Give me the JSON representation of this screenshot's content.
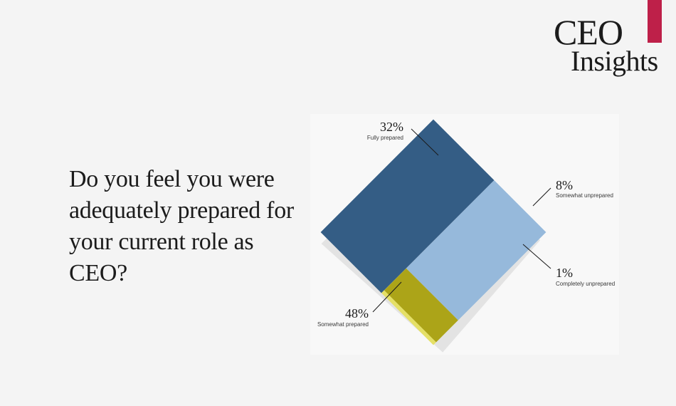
{
  "brand": {
    "line1": "CEO",
    "line2": "Insights",
    "accent_color": "#be2049"
  },
  "question": "Do you feel you were adequately prepared for your current role as CEO?",
  "chart_data": {
    "type": "pie",
    "title": "Do you feel you were adequately prepared for your current role as CEO?",
    "categories": [
      "Fully prepared",
      "Somewhat prepared",
      "Somewhat unprepared",
      "Completely unprepared"
    ],
    "values": [
      32,
      48,
      8,
      1
    ],
    "labels": [
      "32%",
      "48%",
      "8%",
      "1%"
    ],
    "colors": [
      "#96b9db",
      "#345d85",
      "#aca418",
      "#e5e066"
    ],
    "shadow_color": "#e3e3e3"
  }
}
